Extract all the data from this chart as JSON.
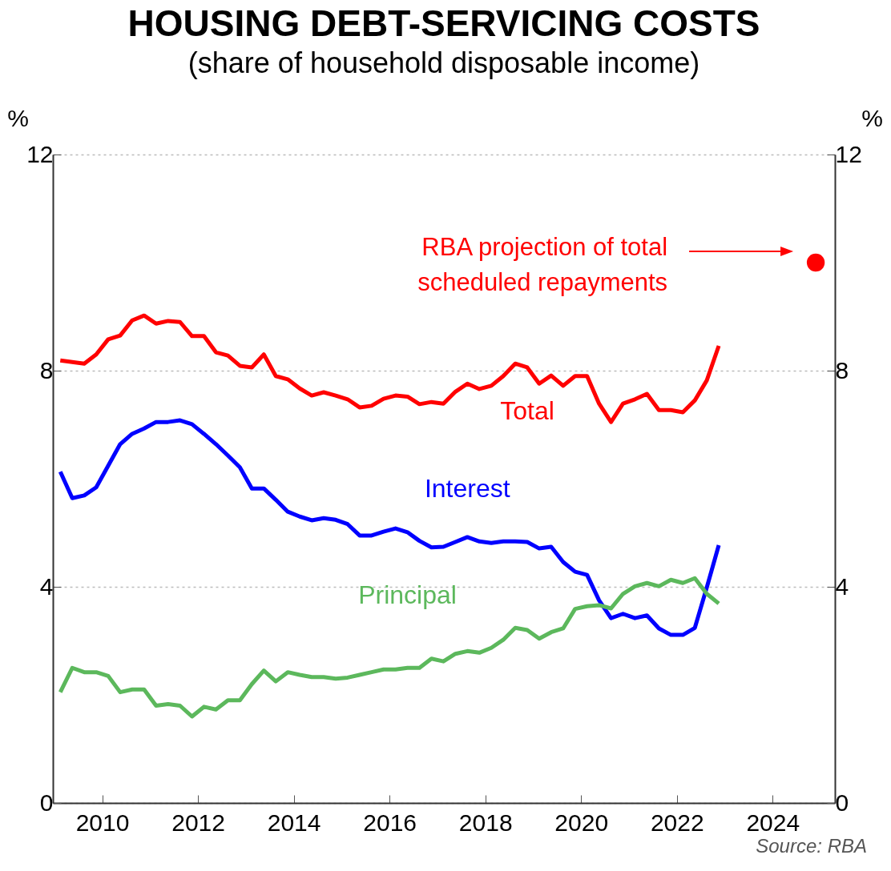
{
  "chart_data": {
    "type": "line",
    "title": "HOUSING DEBT-SERVICING COSTS",
    "subtitle": "(share of household disposable income)",
    "ylabel": "%",
    "y2label": "%",
    "xlim": [
      2008.97,
      2025.3
    ],
    "xticks": [
      2010,
      2012,
      2014,
      2016,
      2018,
      2020,
      2022,
      2024
    ],
    "ylim": [
      0,
      12
    ],
    "yticks": [
      0,
      4,
      8,
      12
    ],
    "y2lim": [
      0,
      12
    ],
    "y2ticks": [
      0,
      4,
      8,
      12
    ],
    "grid": "y",
    "x": [
      2009.125,
      2009.375,
      2009.625,
      2009.875,
      2010.125,
      2010.375,
      2010.625,
      2010.875,
      2011.125,
      2011.375,
      2011.625,
      2011.875,
      2012.125,
      2012.375,
      2012.625,
      2012.875,
      2013.125,
      2013.375,
      2013.625,
      2013.875,
      2014.125,
      2014.375,
      2014.625,
      2014.875,
      2015.125,
      2015.375,
      2015.625,
      2015.875,
      2016.125,
      2016.375,
      2016.625,
      2016.875,
      2017.125,
      2017.375,
      2017.625,
      2017.875,
      2018.125,
      2018.375,
      2018.625,
      2018.875,
      2019.125,
      2019.375,
      2019.625,
      2019.875,
      2020.125,
      2020.375,
      2020.625,
      2020.875,
      2021.125,
      2021.375,
      2021.625,
      2021.875,
      2022.125,
      2022.375,
      2022.625,
      2022.875
    ],
    "series": [
      {
        "name": "Total",
        "color": "#ff0000",
        "values": [
          8.19,
          8.16,
          8.13,
          8.3,
          8.58,
          8.65,
          8.93,
          9.02,
          8.87,
          8.92,
          8.9,
          8.64,
          8.64,
          8.34,
          8.28,
          8.09,
          8.06,
          8.3,
          7.9,
          7.84,
          7.67,
          7.54,
          7.6,
          7.54,
          7.47,
          7.32,
          7.35,
          7.48,
          7.54,
          7.52,
          7.38,
          7.42,
          7.39,
          7.61,
          7.76,
          7.66,
          7.72,
          7.9,
          8.13,
          8.06,
          7.76,
          7.91,
          7.72,
          7.9,
          7.9,
          7.39,
          7.05,
          7.39,
          7.47,
          7.57,
          7.27,
          7.27,
          7.23,
          7.45,
          7.82,
          8.46
        ]
      },
      {
        "name": "Interest",
        "color": "#0000ff",
        "values": [
          6.13,
          5.64,
          5.69,
          5.84,
          6.24,
          6.64,
          6.83,
          6.93,
          7.05,
          7.05,
          7.08,
          7.01,
          6.83,
          6.64,
          6.43,
          6.21,
          5.82,
          5.82,
          5.61,
          5.39,
          5.3,
          5.23,
          5.27,
          5.24,
          5.16,
          4.95,
          4.95,
          5.02,
          5.08,
          5.01,
          4.85,
          4.73,
          4.74,
          4.83,
          4.92,
          4.84,
          4.81,
          4.84,
          4.84,
          4.83,
          4.71,
          4.74,
          4.46,
          4.28,
          4.22,
          3.75,
          3.42,
          3.5,
          3.42,
          3.47,
          3.23,
          3.11,
          3.11,
          3.24,
          3.99,
          4.77
        ]
      },
      {
        "name": "Principal",
        "color": "#5cb85c",
        "values": [
          2.05,
          2.5,
          2.42,
          2.42,
          2.35,
          2.05,
          2.1,
          2.1,
          1.8,
          1.83,
          1.8,
          1.6,
          1.78,
          1.73,
          1.9,
          1.9,
          2.2,
          2.45,
          2.25,
          2.42,
          2.37,
          2.33,
          2.33,
          2.3,
          2.32,
          2.37,
          2.42,
          2.47,
          2.47,
          2.5,
          2.5,
          2.67,
          2.62,
          2.76,
          2.81,
          2.78,
          2.87,
          3.02,
          3.24,
          3.2,
          3.04,
          3.16,
          3.23,
          3.59,
          3.64,
          3.66,
          3.6,
          3.87,
          4.01,
          4.07,
          4.01,
          4.13,
          4.07,
          4.16,
          3.87,
          3.69
        ]
      },
      {
        "type": "scatter",
        "color": "#ff0000",
        "marker": "circle",
        "x": [
          2024.9
        ],
        "values": [
          10
        ]
      }
    ],
    "annotations": [
      "RBA projection of total scheduled repayments",
      "Source: RBA"
    ]
  }
}
